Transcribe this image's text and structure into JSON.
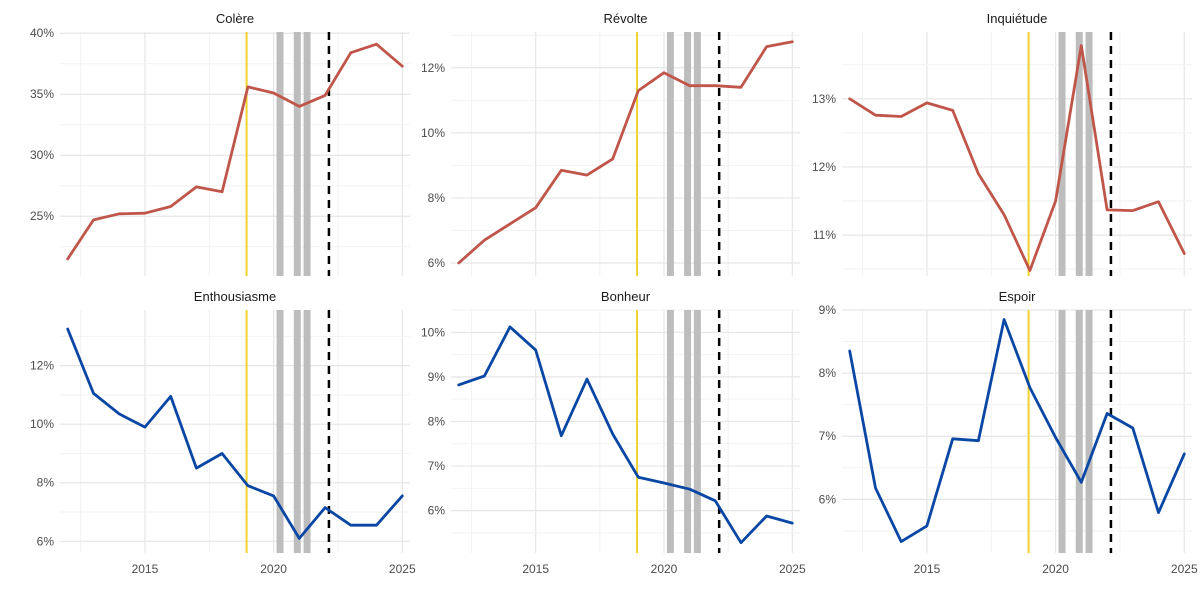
{
  "chart_data": [
    {
      "type": "line",
      "title": "Colère",
      "color": "#C0564A",
      "x": [
        2012,
        2013,
        2014,
        2015,
        2016,
        2017,
        2018,
        2019,
        2020,
        2021,
        2022,
        2023,
        2024,
        2025
      ],
      "values": [
        21.5,
        24.7,
        25.2,
        25.25,
        25.8,
        27.4,
        27.0,
        35.6,
        35.1,
        34.0,
        34.9,
        38.4,
        39.1,
        37.3
      ],
      "ylim": [
        20.1,
        40.1
      ],
      "yticks": [
        25,
        30,
        35,
        40
      ],
      "ytick_labels": [
        "25%",
        "30%",
        "35%",
        "40%"
      ],
      "xticks": [],
      "xtick_labels": []
    },
    {
      "type": "line",
      "title": "Révolte",
      "color": "#C0564A",
      "x": [
        2012,
        2013,
        2014,
        2015,
        2016,
        2017,
        2018,
        2019,
        2020,
        2021,
        2022,
        2023,
        2024,
        2025
      ],
      "values": [
        6.0,
        6.7,
        7.2,
        7.7,
        8.85,
        8.7,
        9.2,
        11.3,
        11.85,
        11.45,
        11.45,
        11.4,
        12.65,
        12.8
      ],
      "ylim": [
        5.6,
        13.1
      ],
      "yticks": [
        6,
        8,
        10,
        12
      ],
      "ytick_labels": [
        "6%",
        "8%",
        "10%",
        "12%"
      ],
      "xticks": [],
      "xtick_labels": []
    },
    {
      "type": "line",
      "title": "Inquiétude",
      "color": "#C0564A",
      "x": [
        2012,
        2013,
        2014,
        2015,
        2016,
        2017,
        2018,
        2019,
        2020,
        2021,
        2022,
        2023,
        2024,
        2025
      ],
      "values": [
        13.0,
        12.76,
        12.74,
        12.94,
        12.83,
        11.9,
        11.3,
        10.48,
        11.5,
        13.78,
        11.37,
        11.36,
        11.49,
        10.73
      ],
      "ylim": [
        10.4,
        13.98
      ],
      "yticks": [
        11,
        12,
        13
      ],
      "ytick_labels": [
        "11%",
        "12%",
        "13%"
      ],
      "xticks": [],
      "xtick_labels": []
    },
    {
      "type": "line",
      "title": "Enthousiasme",
      "color": "#0A47A4",
      "x": [
        2012,
        2013,
        2014,
        2015,
        2016,
        2017,
        2018,
        2019,
        2020,
        2021,
        2022,
        2023,
        2024,
        2025
      ],
      "values": [
        13.25,
        11.05,
        10.35,
        9.9,
        10.95,
        8.5,
        9.0,
        7.9,
        7.55,
        6.1,
        7.15,
        6.55,
        6.55,
        7.55
      ],
      "ylim": [
        5.6,
        13.9
      ],
      "yticks": [
        6,
        8,
        10,
        12
      ],
      "ytick_labels": [
        "6%",
        "8%",
        "10%",
        "12%"
      ],
      "xticks": [
        2015,
        2020,
        2025
      ],
      "xtick_labels": [
        "2015",
        "2020",
        "2025"
      ]
    },
    {
      "type": "line",
      "title": "Bonheur",
      "color": "#0A47A4",
      "x": [
        2012,
        2013,
        2014,
        2015,
        2016,
        2017,
        2018,
        2019,
        2020,
        2021,
        2022,
        2023,
        2024,
        2025
      ],
      "values": [
        8.82,
        9.02,
        10.12,
        9.6,
        7.68,
        8.95,
        7.72,
        6.75,
        6.62,
        6.48,
        6.22,
        5.28,
        5.88,
        5.72
      ],
      "ylim": [
        5.05,
        10.5
      ],
      "yticks": [
        6,
        7,
        8,
        9,
        10
      ],
      "ytick_labels": [
        "6%",
        "7%",
        "8%",
        "9%",
        "10%"
      ],
      "xticks": [
        2015,
        2020,
        2025
      ],
      "xtick_labels": [
        "2015",
        "2020",
        "2025"
      ]
    },
    {
      "type": "line",
      "title": "Espoir",
      "color": "#0A47A4",
      "x": [
        2012,
        2013,
        2014,
        2015,
        2016,
        2017,
        2018,
        2019,
        2020,
        2021,
        2022,
        2023,
        2024,
        2025
      ],
      "values": [
        8.35,
        6.18,
        5.33,
        5.58,
        6.96,
        6.93,
        8.85,
        7.77,
        6.98,
        6.27,
        7.36,
        7.13,
        5.79,
        6.72
      ],
      "ylim": [
        5.15,
        9.0
      ],
      "yticks": [
        6,
        7,
        8,
        9
      ],
      "ytick_labels": [
        "6%",
        "7%",
        "8%",
        "9%"
      ],
      "xticks": [
        2015,
        2020,
        2025
      ],
      "xtick_labels": [
        "2015",
        "2020",
        "2025"
      ]
    }
  ],
  "reference_lines": {
    "yellow_line_year": 2018.95,
    "dashed_line_year": 2022.15,
    "grey_band_years": [
      2020.25,
      2020.92,
      2021.3
    ],
    "yellow_color": "#F2D22E",
    "grey_color": "#BDBDBD",
    "dashed_color": "#000000"
  },
  "xlim": [
    2011.7,
    2025.3
  ],
  "grid": true
}
